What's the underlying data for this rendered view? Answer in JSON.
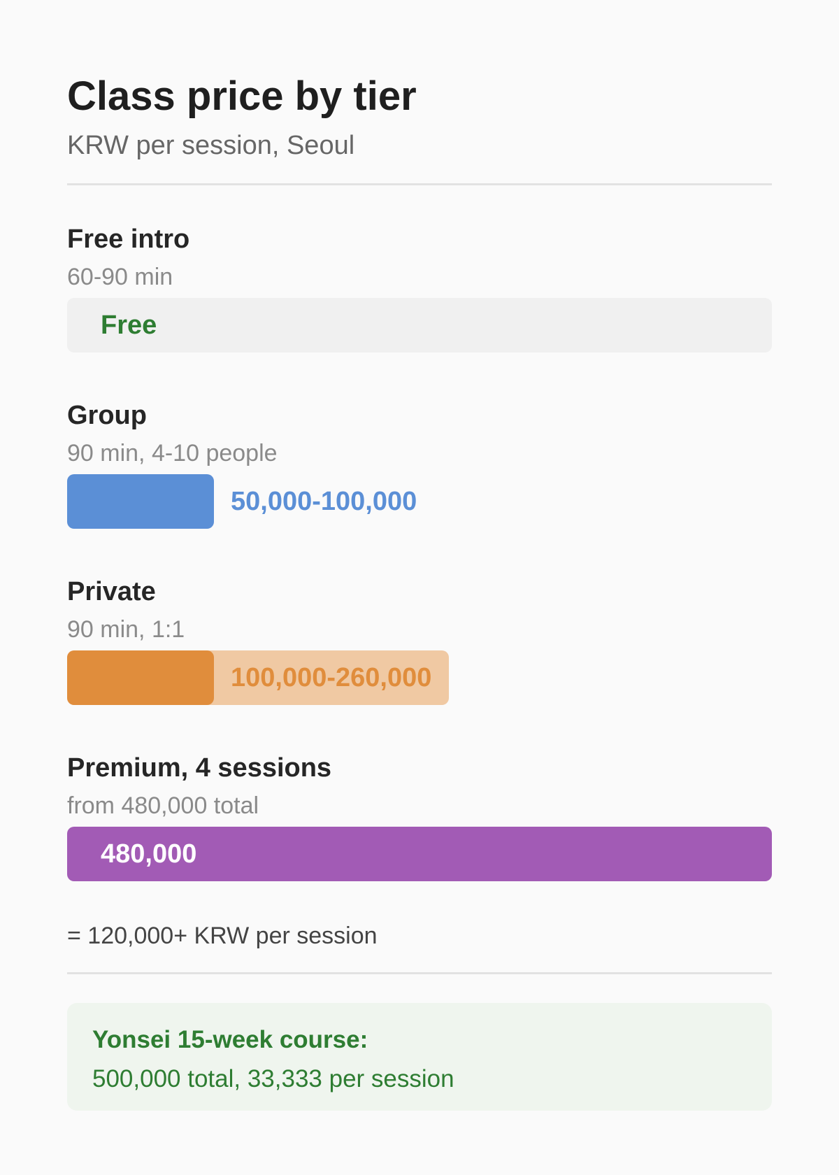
{
  "chart_data": {
    "type": "bar",
    "title": "Class price by tier",
    "subtitle": "KRW per session, Seoul",
    "scale_max": 480000,
    "tiers": [
      {
        "name": "Free intro",
        "description": "60-90 min",
        "value_label": "Free",
        "low": 0,
        "high": 0,
        "color": "#2e7d32",
        "track_color": "#f0f0f0"
      },
      {
        "name": "Group",
        "description": "90 min, 4-10 people",
        "value_label": "50,000-100,000",
        "low": 50000,
        "high": 100000,
        "color": "#5b8fd6"
      },
      {
        "name": "Private",
        "description": "90 min, 1:1",
        "value_label": "100,000-260,000",
        "low": 100000,
        "high": 260000,
        "color": "#e08d3c",
        "range_color": "#f0c9a3"
      },
      {
        "name": "Premium, 4 sessions",
        "description": "from 480,000 total",
        "value_label": "480,000",
        "low": 480000,
        "high": 480000,
        "color": "#a25bb5"
      }
    ],
    "note": "= 120,000+ KRW per session",
    "callout": {
      "title": "Yonsei 15-week course:",
      "body": "500,000 total, 33,333 per session"
    }
  }
}
